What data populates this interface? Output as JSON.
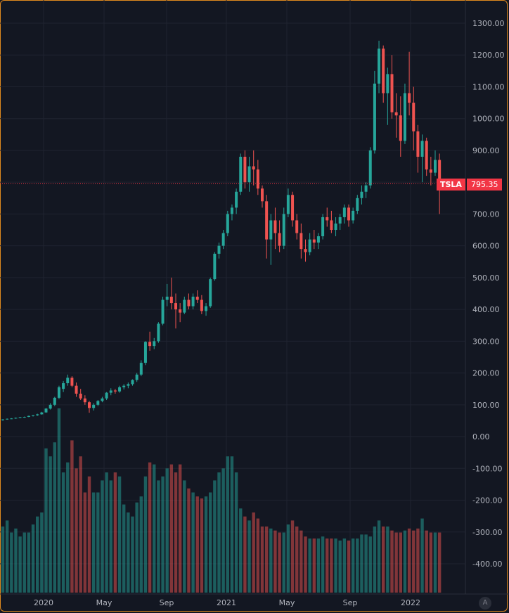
{
  "chart_data": {
    "type": "candlestick",
    "ticker": "TSLA",
    "last_price": "795.35",
    "y_ticks": [
      "1300.00",
      "1200.00",
      "1100.00",
      "1000.00",
      "900.00",
      "800.00",
      "700.00",
      "600.00",
      "500.00",
      "400.00",
      "300.00",
      "200.00",
      "100.00",
      "0.00",
      "-100.00",
      "-200.00",
      "-300.00",
      "-400.00"
    ],
    "x_ticks": [
      "2020",
      "May",
      "Sep",
      "2021",
      "May",
      "Sep",
      "2022"
    ],
    "ylim": [
      -400,
      1300
    ],
    "grid": true,
    "candles": [
      [
        52,
        55,
        50,
        54
      ],
      [
        54,
        57,
        53,
        56
      ],
      [
        56,
        58,
        55,
        57
      ],
      [
        57,
        60,
        56,
        59
      ],
      [
        59,
        62,
        58,
        61
      ],
      [
        61,
        63,
        59,
        62
      ],
      [
        62,
        66,
        61,
        65
      ],
      [
        65,
        68,
        63,
        67
      ],
      [
        67,
        72,
        65,
        70
      ],
      [
        70,
        78,
        69,
        76
      ],
      [
        76,
        90,
        75,
        88
      ],
      [
        88,
        105,
        85,
        100
      ],
      [
        100,
        125,
        96,
        122
      ],
      [
        122,
        160,
        118,
        155
      ],
      [
        150,
        175,
        140,
        168
      ],
      [
        168,
        195,
        160,
        185
      ],
      [
        185,
        190,
        155,
        160
      ],
      [
        160,
        170,
        125,
        135
      ],
      [
        135,
        150,
        115,
        120
      ],
      [
        120,
        130,
        100,
        108
      ],
      [
        108,
        112,
        75,
        90
      ],
      [
        90,
        105,
        82,
        100
      ],
      [
        100,
        115,
        96,
        112
      ],
      [
        112,
        125,
        108,
        120
      ],
      [
        120,
        140,
        115,
        138
      ],
      [
        138,
        152,
        130,
        145
      ],
      [
        145,
        150,
        135,
        142
      ],
      [
        142,
        160,
        138,
        155
      ],
      [
        155,
        165,
        148,
        160
      ],
      [
        160,
        170,
        152,
        165
      ],
      [
        165,
        180,
        160,
        178
      ],
      [
        178,
        200,
        172,
        195
      ],
      [
        195,
        240,
        190,
        232
      ],
      [
        232,
        300,
        225,
        298
      ],
      [
        298,
        330,
        270,
        285
      ],
      [
        285,
        310,
        275,
        300
      ],
      [
        300,
        360,
        295,
        355
      ],
      [
        355,
        440,
        350,
        430
      ],
      [
        430,
        480,
        410,
        440
      ],
      [
        440,
        500,
        400,
        420
      ],
      [
        420,
        450,
        340,
        400
      ],
      [
        400,
        420,
        360,
        390
      ],
      [
        390,
        440,
        385,
        430
      ],
      [
        430,
        450,
        400,
        410
      ],
      [
        410,
        450,
        400,
        440
      ],
      [
        440,
        460,
        420,
        430
      ],
      [
        430,
        445,
        385,
        395
      ],
      [
        395,
        420,
        380,
        410
      ],
      [
        410,
        500,
        405,
        495
      ],
      [
        495,
        580,
        490,
        575
      ],
      [
        575,
        610,
        560,
        600
      ],
      [
        600,
        650,
        590,
        640
      ],
      [
        640,
        710,
        630,
        700
      ],
      [
        700,
        730,
        680,
        720
      ],
      [
        720,
        780,
        700,
        770
      ],
      [
        770,
        890,
        760,
        880
      ],
      [
        880,
        900,
        780,
        800
      ],
      [
        800,
        880,
        770,
        850
      ],
      [
        850,
        900,
        790,
        840
      ],
      [
        840,
        870,
        760,
        780
      ],
      [
        780,
        790,
        720,
        740
      ],
      [
        740,
        760,
        560,
        620
      ],
      [
        620,
        700,
        540,
        680
      ],
      [
        680,
        720,
        590,
        640
      ],
      [
        640,
        680,
        580,
        600
      ],
      [
        600,
        720,
        590,
        700
      ],
      [
        700,
        780,
        690,
        760
      ],
      [
        760,
        770,
        660,
        680
      ],
      [
        680,
        700,
        620,
        640
      ],
      [
        640,
        670,
        560,
        590
      ],
      [
        590,
        620,
        550,
        580
      ],
      [
        580,
        640,
        570,
        620
      ],
      [
        620,
        650,
        590,
        610
      ],
      [
        610,
        640,
        590,
        630
      ],
      [
        630,
        700,
        620,
        690
      ],
      [
        690,
        720,
        660,
        680
      ],
      [
        680,
        710,
        640,
        650
      ],
      [
        650,
        690,
        630,
        670
      ],
      [
        670,
        700,
        650,
        690
      ],
      [
        690,
        730,
        670,
        720
      ],
      [
        720,
        730,
        660,
        680
      ],
      [
        680,
        720,
        670,
        710
      ],
      [
        710,
        760,
        700,
        750
      ],
      [
        750,
        790,
        730,
        770
      ],
      [
        770,
        800,
        750,
        790
      ],
      [
        790,
        910,
        780,
        900
      ],
      [
        900,
        1150,
        890,
        1110
      ],
      [
        1110,
        1245,
        1080,
        1220
      ],
      [
        1220,
        1230,
        1050,
        1080
      ],
      [
        1080,
        1160,
        980,
        1140
      ],
      [
        1140,
        1200,
        1000,
        1020
      ],
      [
        1020,
        1080,
        940,
        1010
      ],
      [
        1010,
        1070,
        880,
        930
      ],
      [
        930,
        1110,
        920,
        1080
      ],
      [
        1080,
        1210,
        1010,
        1050
      ],
      [
        1050,
        1100,
        900,
        960
      ],
      [
        960,
        980,
        830,
        880
      ],
      [
        880,
        950,
        800,
        930
      ],
      [
        930,
        940,
        820,
        840
      ],
      [
        840,
        880,
        790,
        830
      ],
      [
        830,
        900,
        820,
        870
      ],
      [
        870,
        890,
        700,
        795
      ]
    ],
    "volume": [
      330,
      360,
      300,
      320,
      280,
      300,
      300,
      340,
      380,
      400,
      720,
      680,
      750,
      920,
      600,
      650,
      760,
      620,
      680,
      500,
      580,
      500,
      500,
      560,
      600,
      560,
      600,
      580,
      440,
      400,
      380,
      450,
      480,
      580,
      650,
      640,
      560,
      580,
      620,
      640,
      600,
      640,
      560,
      520,
      500,
      480,
      470,
      480,
      500,
      560,
      600,
      620,
      680,
      680,
      600,
      420,
      380,
      360,
      400,
      370,
      330,
      330,
      320,
      310,
      300,
      300,
      340,
      360,
      330,
      310,
      280,
      270,
      270,
      270,
      280,
      270,
      270,
      270,
      260,
      270,
      260,
      270,
      270,
      290,
      290,
      280,
      330,
      360,
      330,
      330,
      310,
      300,
      300,
      310,
      320,
      310,
      320,
      370,
      310,
      300,
      300,
      300
    ]
  }
}
